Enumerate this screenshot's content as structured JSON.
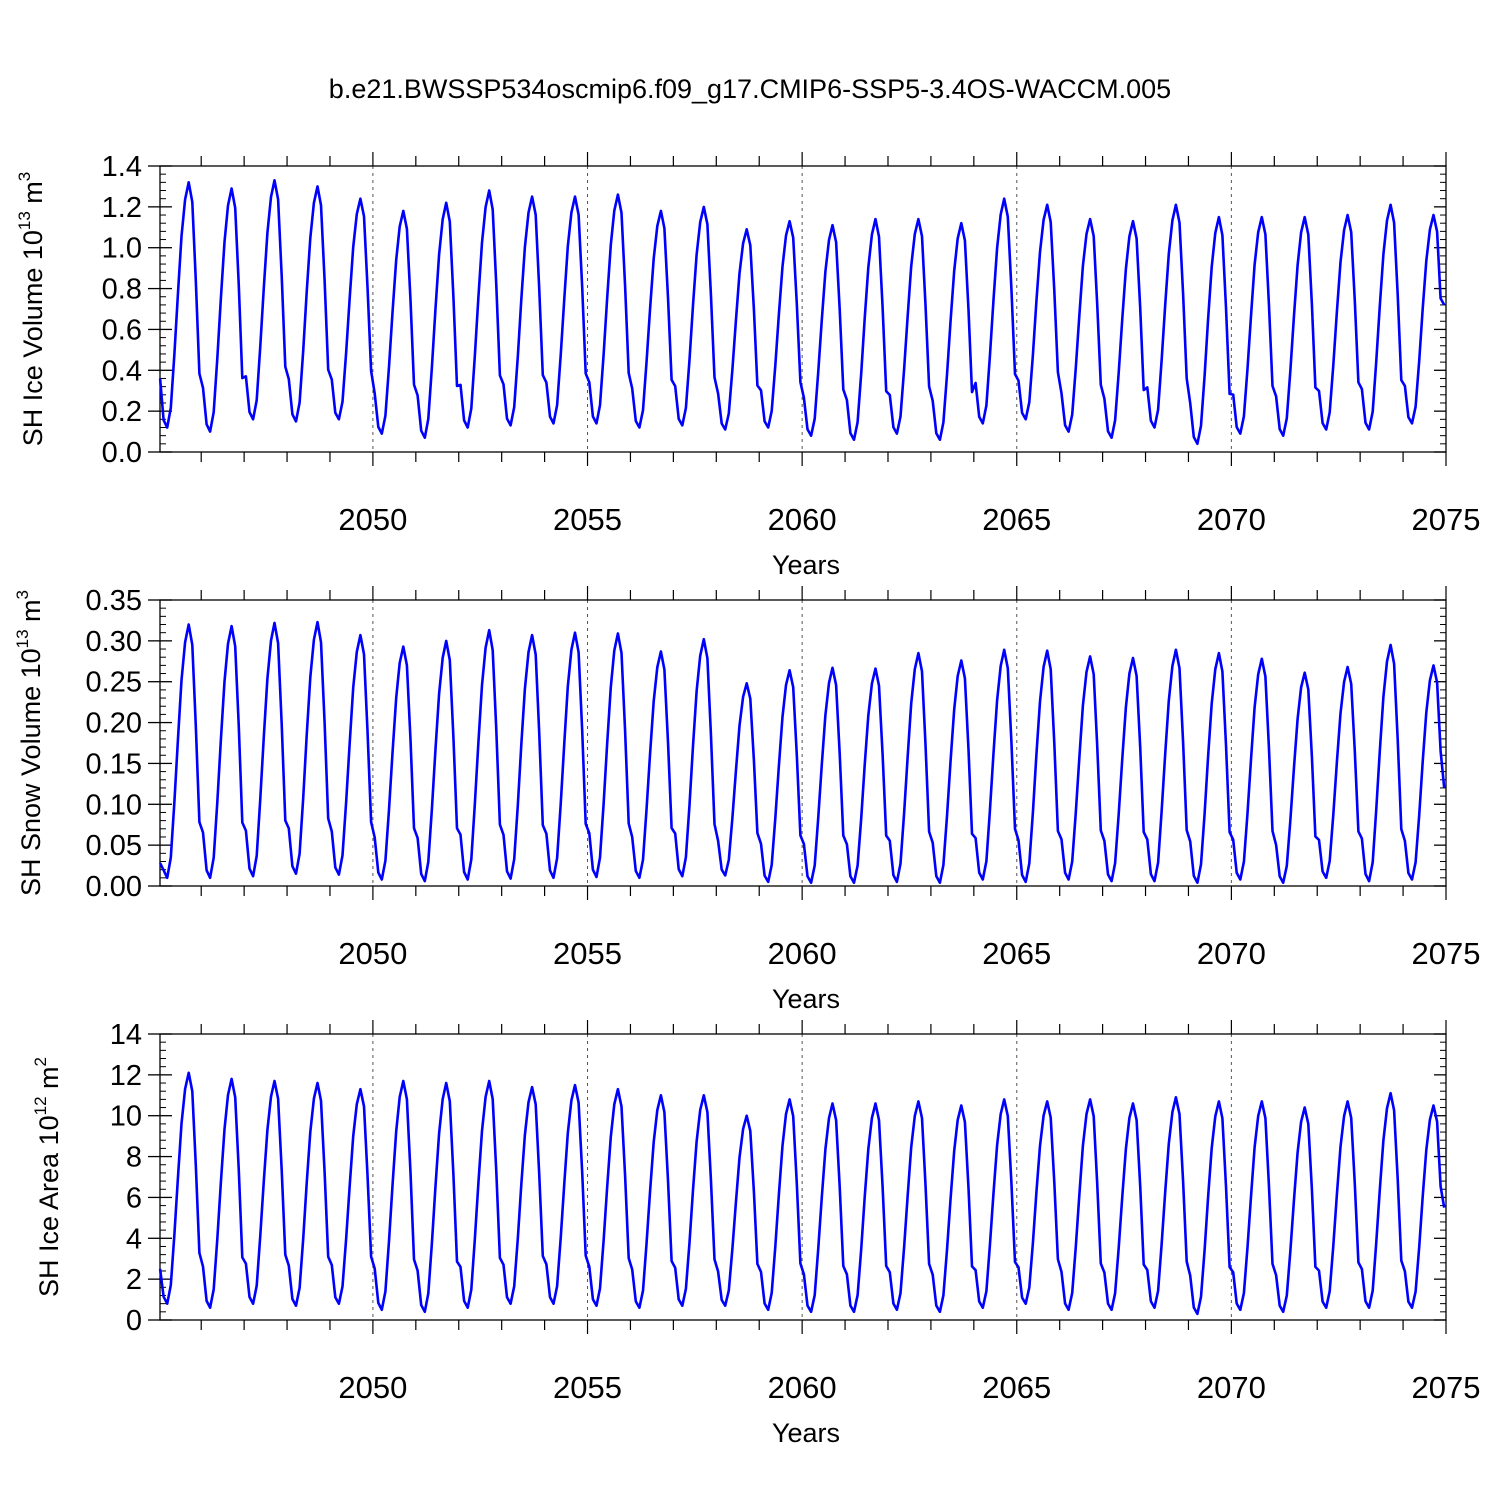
{
  "title": "b.e21.BWSSP534oscmip6.f09_g17.CMIP6-SSP5-3.4OS-WACCM.005",
  "colors": {
    "line": "#0000ff",
    "axis": "#000000",
    "gridline": "#555555"
  },
  "chart_data": [
    {
      "type": "line",
      "ylabel": "SH Ice Volume 10",
      "ylabel_exp": "13",
      "ylabel_unit": " m",
      "ylabel_unit_exp": "3",
      "xlabel": "Years",
      "xlim": [
        2045.04,
        2075.0
      ],
      "ylim": [
        0,
        1.4
      ],
      "x_ticks": [
        2050,
        2055,
        2060,
        2065,
        2070,
        2075
      ],
      "x_tick_labels": [
        "2050",
        "2055",
        "2060",
        "2065",
        "2070",
        "2075"
      ],
      "y_ticks": [
        0,
        0.2,
        0.4,
        0.6,
        0.8,
        1.0,
        1.2,
        1.4
      ],
      "y_tick_labels": [
        "0.0",
        "0.2",
        "0.4",
        "0.6",
        "0.8",
        "1.0",
        "1.2",
        "1.4"
      ],
      "vertical_gridlines": [
        2050,
        2055,
        2060,
        2065,
        2070
      ],
      "series": [
        {
          "start_year": 2045,
          "yearly_peaks": [
            1.32,
            1.29,
            1.33,
            1.3,
            1.24,
            1.18,
            1.22,
            1.28,
            1.25,
            1.25,
            1.26,
            1.18,
            1.2,
            1.09,
            1.13,
            1.11,
            1.14,
            1.14,
            1.12,
            1.24,
            1.21,
            1.14,
            1.13,
            1.21,
            1.15,
            1.15,
            1.15,
            1.16,
            1.21,
            1.16
          ],
          "yearly_minima": [
            0.12,
            0.1,
            0.16,
            0.15,
            0.16,
            0.09,
            0.07,
            0.12,
            0.13,
            0.14,
            0.14,
            0.12,
            0.13,
            0.11,
            0.12,
            0.08,
            0.06,
            0.09,
            0.06,
            0.14,
            0.16,
            0.1,
            0.07,
            0.12,
            0.04,
            0.09,
            0.08,
            0.11,
            0.11,
            0.14
          ],
          "start_value": 0.36,
          "end_value": 0.72
        }
      ]
    },
    {
      "type": "line",
      "ylabel": "SH Snow Volume 10",
      "ylabel_exp": "13",
      "ylabel_unit": " m",
      "ylabel_unit_exp": "3",
      "xlabel": "Years",
      "xlim": [
        2045.04,
        2075.0
      ],
      "ylim": [
        0,
        0.35
      ],
      "x_ticks": [
        2050,
        2055,
        2060,
        2065,
        2070,
        2075
      ],
      "x_tick_labels": [
        "2050",
        "2055",
        "2060",
        "2065",
        "2070",
        "2075"
      ],
      "y_ticks": [
        0,
        0.05,
        0.1,
        0.15,
        0.2,
        0.25,
        0.3,
        0.35
      ],
      "y_tick_labels": [
        "0.00",
        "0.05",
        "0.10",
        "0.15",
        "0.20",
        "0.25",
        "0.30",
        "0.35"
      ],
      "vertical_gridlines": [
        2050,
        2055,
        2060,
        2065,
        2070
      ],
      "series": [
        {
          "start_year": 2045,
          "yearly_peaks": [
            0.32,
            0.318,
            0.322,
            0.323,
            0.307,
            0.293,
            0.3,
            0.313,
            0.307,
            0.31,
            0.309,
            0.287,
            0.302,
            0.248,
            0.264,
            0.267,
            0.266,
            0.285,
            0.276,
            0.289,
            0.288,
            0.281,
            0.279,
            0.289,
            0.285,
            0.278,
            0.261,
            0.268,
            0.295,
            0.27
          ],
          "yearly_minima": [
            0.01,
            0.01,
            0.012,
            0.015,
            0.014,
            0.008,
            0.006,
            0.008,
            0.009,
            0.01,
            0.011,
            0.01,
            0.012,
            0.013,
            0.005,
            0.004,
            0.004,
            0.005,
            0.004,
            0.008,
            0.005,
            0.008,
            0.006,
            0.006,
            0.004,
            0.008,
            0.004,
            0.01,
            0.006,
            0.008
          ],
          "start_value": 0.028,
          "end_value": 0.12
        }
      ]
    },
    {
      "type": "line",
      "ylabel": "SH Ice Area 10",
      "ylabel_exp": "12",
      "ylabel_unit": " m",
      "ylabel_unit_exp": "2",
      "xlabel": "Years",
      "xlim": [
        2045.04,
        2075.0
      ],
      "ylim": [
        0,
        14
      ],
      "x_ticks": [
        2050,
        2055,
        2060,
        2065,
        2070,
        2075
      ],
      "x_tick_labels": [
        "2050",
        "2055",
        "2060",
        "2065",
        "2070",
        "2075"
      ],
      "y_ticks": [
        0,
        2,
        4,
        6,
        8,
        10,
        12,
        14
      ],
      "y_tick_labels": [
        "0",
        "2",
        "4",
        "6",
        "8",
        "10",
        "12",
        "14"
      ],
      "vertical_gridlines": [
        2050,
        2055,
        2060,
        2065,
        2070
      ],
      "series": [
        {
          "start_year": 2045,
          "yearly_peaks": [
            12.1,
            11.8,
            11.7,
            11.6,
            11.3,
            11.7,
            11.6,
            11.7,
            11.4,
            11.5,
            11.3,
            11.0,
            11.0,
            10.0,
            10.8,
            10.6,
            10.6,
            10.7,
            10.5,
            10.8,
            10.7,
            10.8,
            10.6,
            10.9,
            10.7,
            10.7,
            10.4,
            10.7,
            11.1,
            10.5
          ],
          "yearly_minima": [
            0.8,
            0.6,
            0.8,
            0.7,
            0.8,
            0.5,
            0.4,
            0.6,
            0.8,
            0.8,
            0.7,
            0.6,
            0.7,
            0.7,
            0.5,
            0.4,
            0.4,
            0.5,
            0.4,
            0.6,
            0.8,
            0.5,
            0.5,
            0.6,
            0.3,
            0.5,
            0.4,
            0.6,
            0.6,
            0.6
          ],
          "start_value": 2.5,
          "end_value": 5.5
        }
      ]
    }
  ]
}
